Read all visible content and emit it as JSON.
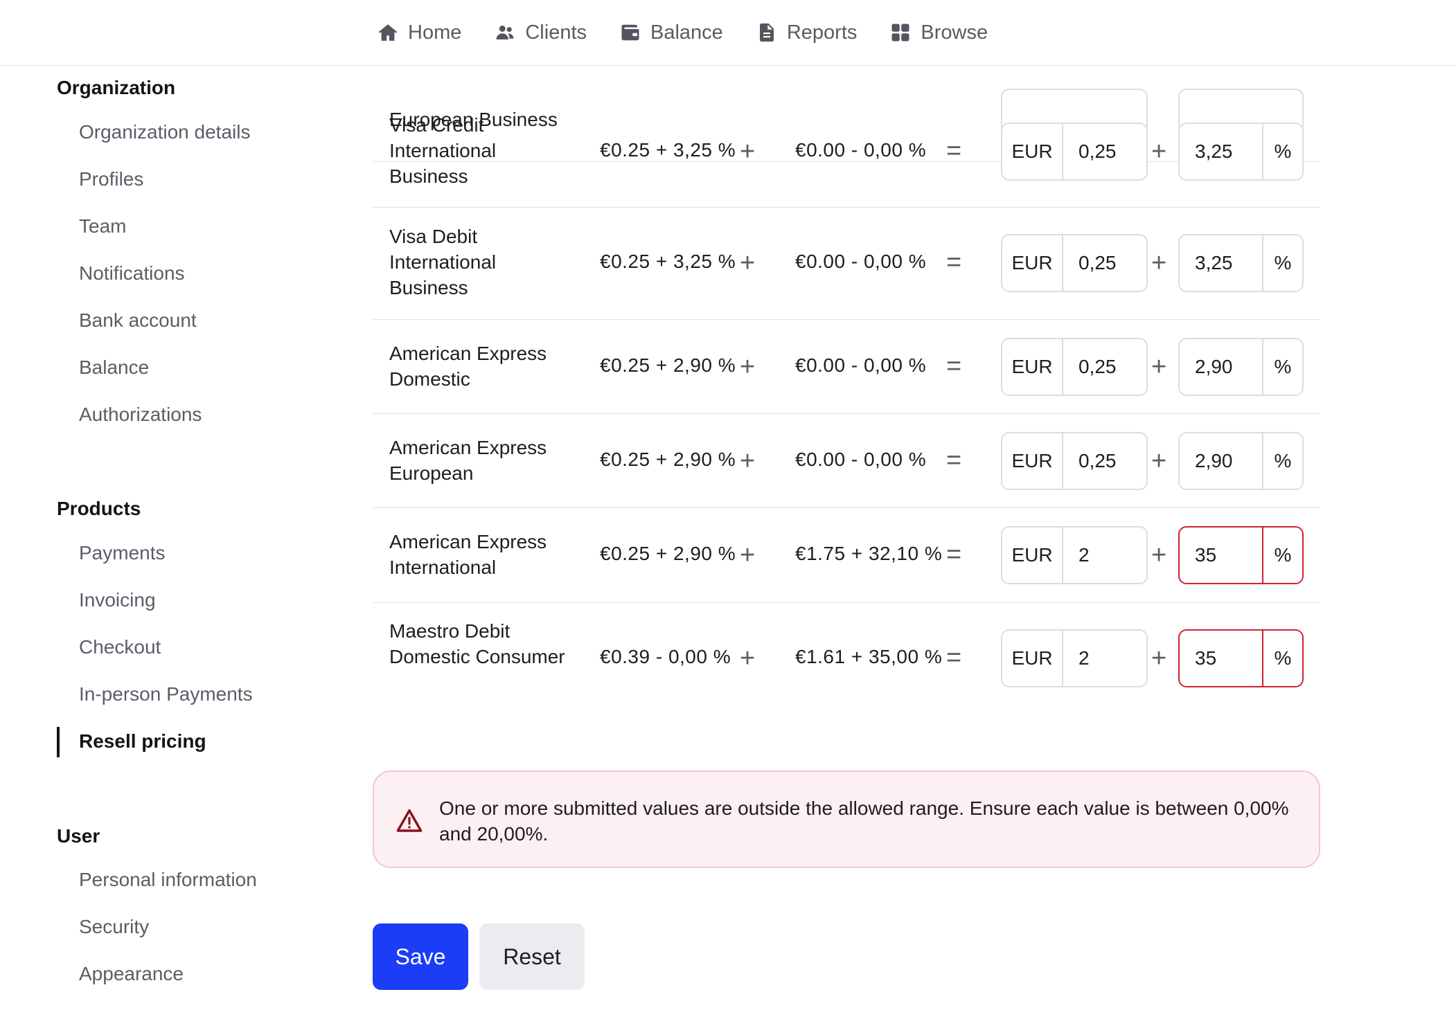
{
  "nav": {
    "items": [
      {
        "label": "Home",
        "icon": "home-icon"
      },
      {
        "label": "Clients",
        "icon": "users-icon"
      },
      {
        "label": "Balance",
        "icon": "wallet-icon"
      },
      {
        "label": "Reports",
        "icon": "file-icon"
      },
      {
        "label": "Browse",
        "icon": "grid-icon"
      }
    ]
  },
  "sidebar": {
    "organization": {
      "heading": "Organization",
      "items": [
        "Organization details",
        "Profiles",
        "Team",
        "Notifications",
        "Bank account",
        "Balance",
        "Authorizations"
      ]
    },
    "products": {
      "heading": "Products",
      "items": [
        "Payments",
        "Invoicing",
        "Checkout",
        "In-person Payments",
        "Resell pricing"
      ],
      "active": "Resell pricing"
    },
    "user": {
      "heading": "User",
      "items": [
        "Personal information",
        "Security",
        "Appearance"
      ]
    }
  },
  "table": {
    "partial_row_name": "European Business",
    "rows": [
      {
        "name": "Visa Credit International Business",
        "base_fee": "€0.25 + 3,25 %",
        "difference": "€0.00 - 0,00 %",
        "currency": "EUR",
        "fixed": "0,25",
        "percent": "3,25",
        "percent_suffix": "%",
        "error": false
      },
      {
        "name": "Visa Debit International Business",
        "base_fee": "€0.25 + 3,25 %",
        "difference": "€0.00 - 0,00 %",
        "currency": "EUR",
        "fixed": "0,25",
        "percent": "3,25",
        "percent_suffix": "%",
        "error": false
      },
      {
        "name": "American Express Domestic",
        "base_fee": "€0.25 + 2,90 %",
        "difference": "€0.00 - 0,00 %",
        "currency": "EUR",
        "fixed": "0,25",
        "percent": "2,90",
        "percent_suffix": "%",
        "error": false
      },
      {
        "name": "American Express European",
        "base_fee": "€0.25 + 2,90 %",
        "difference": "€0.00 - 0,00 %",
        "currency": "EUR",
        "fixed": "0,25",
        "percent": "2,90",
        "percent_suffix": "%",
        "error": false
      },
      {
        "name": "American Express International",
        "base_fee": "€0.25 + 2,90 %",
        "difference": "€1.75 + 32,10 %",
        "currency": "EUR",
        "fixed": "2",
        "percent": "35",
        "percent_suffix": "%",
        "error": true
      },
      {
        "name": "Maestro Debit Domestic Consumer",
        "base_fee": "€0.39 - 0,00 %",
        "difference": "€1.61 + 35,00 %",
        "currency": "EUR",
        "fixed": "2",
        "percent": "35",
        "percent_suffix": "%",
        "error": true
      }
    ]
  },
  "alert": {
    "message": "One or more submitted values are outside the allowed range. Ensure each value is between 0,00% and 20,00%.",
    "icon": "warning-triangle-icon",
    "color": "#d12033"
  },
  "actions": {
    "save_label": "Save",
    "reset_label": "Reset",
    "save_color": "#1a3df5"
  }
}
